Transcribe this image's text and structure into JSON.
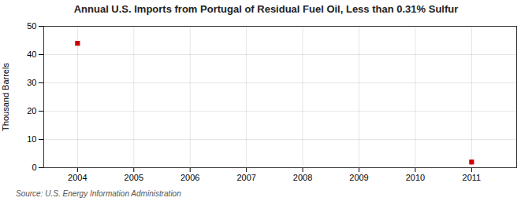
{
  "chart_data": {
    "type": "scatter",
    "title": "Annual U.S. Imports from Portugal of Residual Fuel Oil, Less than 0.31% Sulfur",
    "ylabel": "Thousand Barrels",
    "source": "Source: U.S. Energy Information Administration",
    "x": [
      2004,
      2011
    ],
    "values": [
      44,
      2
    ],
    "color": "#cc0000",
    "marker": "square",
    "xlim": [
      2003.4,
      2011.8
    ],
    "ylim": [
      0,
      50
    ],
    "xticks": [
      2004,
      2005,
      2006,
      2007,
      2008,
      2009,
      2010,
      2011
    ],
    "yticks": [
      0,
      10,
      20,
      30,
      40,
      50
    ],
    "grid": true
  }
}
